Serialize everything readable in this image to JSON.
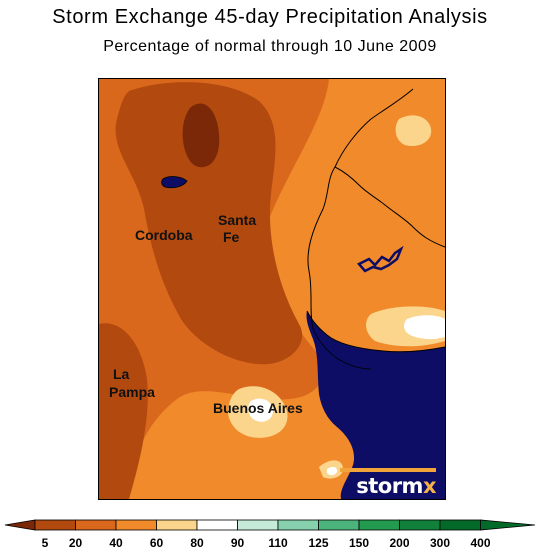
{
  "header": {
    "title": "Storm Exchange 45-day Precipitation Analysis",
    "subtitle": "Percentage of normal through 10 June 2009"
  },
  "map": {
    "labels": {
      "cordoba": "Cordoba",
      "santa_fe_1": "Santa",
      "santa_fe_2": "Fe",
      "la_pampa_1": "La",
      "la_pampa_2": "Pampa",
      "buenos_aires": "Buenos Aires"
    },
    "logo": {
      "word_main": "storm",
      "word_x": "x"
    },
    "colors": {
      "water": "#0d0d66",
      "bin_5_20": "#7a2808",
      "bin_20_40": "#b2490f",
      "bin_40_60": "#d9681c",
      "bin_60_80": "#f08a2a",
      "bin_80_90": "#fbd58c",
      "bin_90_110": "#ffffff"
    }
  },
  "legend": {
    "ticks": [
      "5",
      "20",
      "40",
      "60",
      "80",
      "90",
      "110",
      "125",
      "150",
      "200",
      "300",
      "400"
    ],
    "colors": [
      "#7a2808",
      "#b2490f",
      "#d9681c",
      "#f08a2a",
      "#fbd58c",
      "#ffffff",
      "#c5ead8",
      "#86d0ad",
      "#4db37c",
      "#229a4f",
      "#10803a",
      "#046a29"
    ]
  }
}
